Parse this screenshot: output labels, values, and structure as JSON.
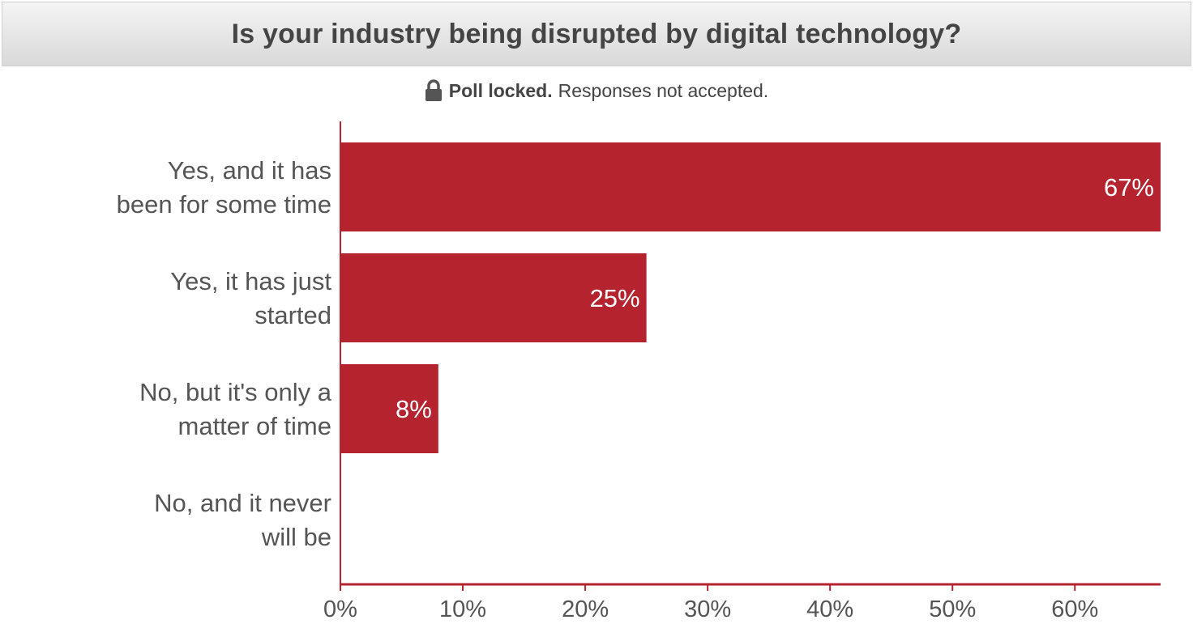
{
  "poll": {
    "title": "Is your industry being disrupted by digital technology?",
    "status_strong": "Poll locked.",
    "status_text": "Responses not accepted.",
    "status_icon": "lock-icon"
  },
  "colors": {
    "bar": "#b5232f",
    "axis": "#b5232f",
    "text": "#555555"
  },
  "chart_data": {
    "type": "bar",
    "orientation": "horizontal",
    "title": "Is your industry being disrupted by digital technology?",
    "categories": [
      [
        "Yes, and it has",
        "been for some time"
      ],
      [
        "Yes, it has just",
        "started"
      ],
      [
        "No, but it's only a",
        "matter of time"
      ],
      [
        "No, and it never",
        "will be"
      ]
    ],
    "values": [
      67,
      25,
      8,
      0
    ],
    "value_labels": [
      "67%",
      "25%",
      "8%",
      ""
    ],
    "xticks": [
      "0%",
      "10%",
      "20%",
      "30%",
      "40%",
      "50%",
      "60%"
    ],
    "xtick_values": [
      0,
      10,
      20,
      30,
      40,
      50,
      60
    ],
    "xlim": [
      0,
      67
    ],
    "grid": false,
    "legend": "none"
  }
}
